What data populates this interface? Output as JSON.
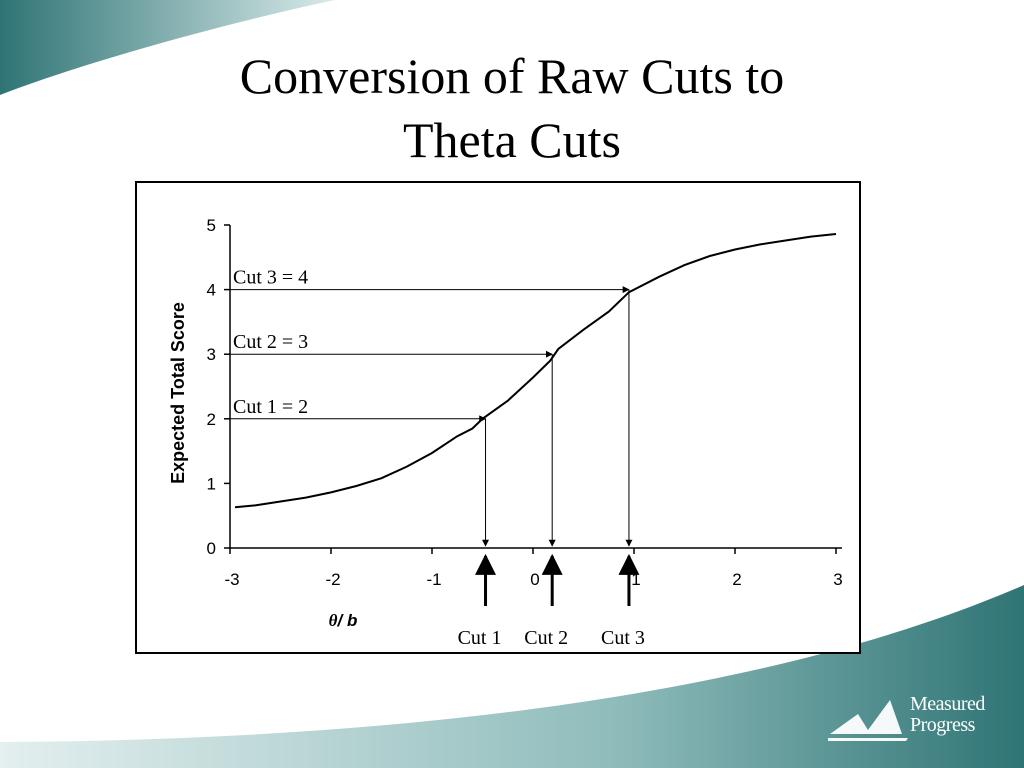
{
  "slide": {
    "title_line1": "Conversion of Raw Cuts to",
    "title_line2": "Theta Cuts"
  },
  "logo": {
    "line1": "Measured",
    "line2": "Progress"
  },
  "colors": {
    "teal_dark": "#2f7475",
    "teal_light": "#a9cccb",
    "text": "#000000"
  },
  "chart_data": {
    "type": "line",
    "xlabel_theta": "θ",
    "xlabel_sep": "/ ",
    "xlabel_b": "b",
    "ylabel": "Expected Total Score",
    "xlim": [
      -3,
      3
    ],
    "ylim": [
      0,
      5
    ],
    "x_ticks": [
      "-3",
      "-2",
      "-1",
      "0",
      "1",
      "2",
      "3"
    ],
    "y_ticks": [
      "0",
      "1",
      "2",
      "3",
      "4",
      "5"
    ],
    "grid": false,
    "series": [
      {
        "x": [
          -2.95,
          -2.75,
          -2.5,
          -2.25,
          -2.0,
          -1.75,
          -1.5,
          -1.25,
          -1.0,
          -0.75,
          -0.6,
          -0.5,
          -0.25,
          0.0,
          0.17,
          0.25,
          0.5,
          0.75,
          0.95,
          1.25,
          1.5,
          1.75,
          2.0,
          2.25,
          2.5,
          2.75,
          3.0
        ],
        "y": [
          0.63,
          0.66,
          0.72,
          0.78,
          0.86,
          0.96,
          1.08,
          1.26,
          1.47,
          1.73,
          1.85,
          2.0,
          2.28,
          2.64,
          2.9,
          3.08,
          3.38,
          3.66,
          3.96,
          4.2,
          4.38,
          4.52,
          4.62,
          4.7,
          4.76,
          4.82,
          4.86
        ]
      }
    ],
    "cuts": [
      {
        "raw_label": "Cut 1 = 2",
        "raw": 2,
        "theta": -0.47,
        "theta_label": "Cut 1"
      },
      {
        "raw_label": "Cut 2 = 3",
        "raw": 3,
        "theta": 0.19,
        "theta_label": "Cut 2"
      },
      {
        "raw_label": "Cut 3 = 4",
        "raw": 4,
        "theta": 0.95,
        "theta_label": "Cut 3"
      }
    ]
  }
}
